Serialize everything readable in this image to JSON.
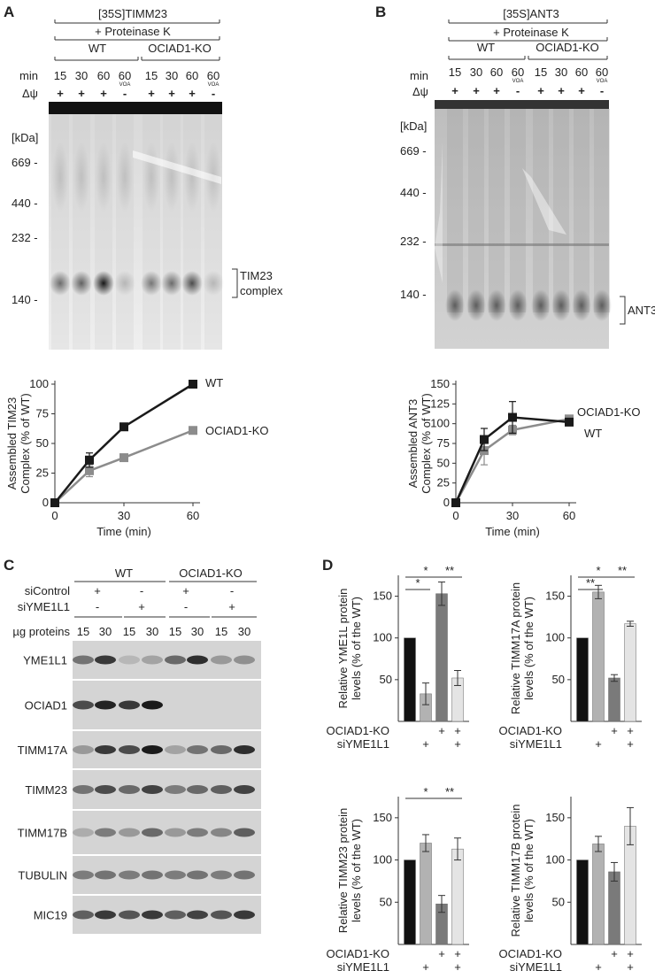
{
  "panels": {
    "A": {
      "letter": "A",
      "header_top": "[35S]TIMM23",
      "header_sub": "+ Proteinase K",
      "groups": [
        "WT",
        "OCIAD1-KO"
      ],
      "row_min_label": "min",
      "mins": [
        "15",
        "30",
        "60",
        "60",
        "15",
        "30",
        "60",
        "60"
      ],
      "voa": [
        "",
        "",
        "",
        "VOA",
        "",
        "",
        "",
        "VOA"
      ],
      "row_dpsi_label": "Δψ",
      "dpsi": [
        "+",
        "+",
        "+",
        "-",
        "+",
        "+",
        "+",
        "-"
      ],
      "kda_label": "[kDa]",
      "markers": [
        "669 -",
        "440 -",
        "232 -",
        "140 -"
      ],
      "band_label": "TIM23 complex",
      "band_label_lines": [
        "TIM23",
        "complex"
      ]
    },
    "B": {
      "letter": "B",
      "header_top": "[35S]ANT3",
      "header_sub": "+ Proteinase K",
      "groups": [
        "WT",
        "OCIAD1-KO"
      ],
      "row_min_label": "min",
      "mins": [
        "15",
        "30",
        "60",
        "60",
        "15",
        "30",
        "60",
        "60"
      ],
      "voa": [
        "",
        "",
        "",
        "VOA",
        "",
        "",
        "",
        "VOA"
      ],
      "row_dpsi_label": "Δψ",
      "dpsi": [
        "+",
        "+",
        "+",
        "-",
        "+",
        "+",
        "+",
        "-"
      ],
      "kda_label": "[kDa]",
      "markers": [
        "669 -",
        "440 -",
        "232 -",
        "140 -"
      ],
      "band_label": "ANT3"
    },
    "C": {
      "letter": "C",
      "groups": [
        "WT",
        "OCIAD1-KO"
      ],
      "rows": [
        {
          "label": "siControl",
          "values": [
            "+",
            "-",
            "+",
            "-"
          ]
        },
        {
          "label": "siYME1L1",
          "values": [
            "-",
            "+",
            "-",
            "+"
          ]
        }
      ],
      "protein_label": "µg proteins",
      "loads": [
        "15",
        "30",
        "15",
        "30",
        "15",
        "30",
        "15",
        "30"
      ],
      "blots": [
        "YME1L1",
        "OCIAD1",
        "TIMM17A",
        "TIMM23",
        "TIMM17B",
        "TUBULIN",
        "MIC19"
      ],
      "blot_suffix": "-"
    },
    "D": {
      "letter": "D",
      "cond_rows": [
        {
          "label": "OCIAD1-KO",
          "values": [
            "",
            "",
            "+",
            "+"
          ]
        },
        {
          "label": "siYME1L1",
          "values": [
            "",
            "+",
            "",
            "+"
          ]
        }
      ]
    }
  },
  "chart_data": [
    {
      "type": "line",
      "panel": "A",
      "x": [
        0,
        15,
        30,
        60
      ],
      "xlabel": "Time (min)",
      "ylabel": "Assembled TIM23 Complex (% of WT)",
      "ylabel_lines": [
        "Assembled TIM23",
        "Complex (% of WT)"
      ],
      "xlim": [
        0,
        60
      ],
      "ylim": [
        0,
        100
      ],
      "xticks": [
        0,
        30,
        60
      ],
      "yticks": [
        0,
        25,
        50,
        75,
        100
      ],
      "series": [
        {
          "name": "WT",
          "color": "#1a1a1a",
          "values": [
            0,
            36,
            64,
            100
          ],
          "err": [
            0,
            6,
            2,
            0
          ]
        },
        {
          "name": "OCIAD1-KO",
          "color": "#8c8c8c",
          "values": [
            0,
            27,
            38,
            61
          ],
          "err": [
            0,
            5,
            2,
            2
          ]
        }
      ]
    },
    {
      "type": "line",
      "panel": "B",
      "x": [
        0,
        15,
        30,
        60
      ],
      "xlabel": "Time (min)",
      "ylabel": "Assembled ANT3 Complex (% of WT)",
      "ylabel_lines": [
        "Assembled ANT3",
        "Complex (% of WT)"
      ],
      "xlim": [
        0,
        60
      ],
      "ylim": [
        0,
        150
      ],
      "xticks": [
        0,
        30,
        60
      ],
      "yticks": [
        0,
        25,
        50,
        75,
        100,
        125,
        150
      ],
      "series": [
        {
          "name": "WT",
          "color": "#1a1a1a",
          "values": [
            0,
            80,
            108,
            102
          ],
          "err": [
            0,
            14,
            20,
            4
          ]
        },
        {
          "name": "OCIAD1-KO",
          "color": "#8c8c8c",
          "values": [
            0,
            66,
            92,
            106
          ],
          "err": [
            0,
            18,
            6,
            4
          ]
        }
      ]
    },
    {
      "type": "bar",
      "panel": "D",
      "ylabel": "Relative YME1L protein levels (% of the WT)",
      "ylabel_lines": [
        "Relative YME1L protein",
        "levels (% of the WT)"
      ],
      "ylim": [
        0,
        175
      ],
      "yticks": [
        50,
        100,
        150
      ],
      "values": [
        100,
        33,
        153,
        52
      ],
      "err": [
        0,
        13,
        14,
        9
      ],
      "colors": [
        "#111111",
        "#b2b2b2",
        "#7a7a7a",
        "#e4e4e4"
      ],
      "significance": [
        {
          "from": 0,
          "to": 1,
          "label": "*"
        },
        {
          "from": 0,
          "to": 2,
          "label": "*"
        },
        {
          "from": 2,
          "to": 3,
          "label": "**"
        }
      ]
    },
    {
      "type": "bar",
      "panel": "D",
      "ylabel": "Relative TIMM17A protein levels (% of the WT)",
      "ylabel_lines": [
        "Relative TIMM17A protein",
        "levels (% of the WT)"
      ],
      "ylim": [
        0,
        175
      ],
      "yticks": [
        50,
        100,
        150
      ],
      "values": [
        100,
        155,
        52,
        117
      ],
      "err": [
        0,
        8,
        4,
        3
      ],
      "colors": [
        "#111111",
        "#b2b2b2",
        "#7a7a7a",
        "#e4e4e4"
      ],
      "significance": [
        {
          "from": 0,
          "to": 1,
          "label": "**"
        },
        {
          "from": 0,
          "to": 2,
          "label": "*"
        },
        {
          "from": 2,
          "to": 3,
          "label": "**"
        }
      ]
    },
    {
      "type": "bar",
      "panel": "D",
      "ylabel": "Relative TIMM23 protein levels (% of the WT)",
      "ylabel_lines": [
        "Relative TIMM23 protein",
        "levels (% of the WT)"
      ],
      "ylim": [
        0,
        175
      ],
      "yticks": [
        50,
        100,
        150
      ],
      "values": [
        100,
        120,
        48,
        113
      ],
      "err": [
        0,
        10,
        10,
        13
      ],
      "colors": [
        "#111111",
        "#b2b2b2",
        "#7a7a7a",
        "#e4e4e4"
      ],
      "significance": [
        {
          "from": 0,
          "to": 2,
          "label": "*"
        },
        {
          "from": 2,
          "to": 3,
          "label": "**"
        }
      ]
    },
    {
      "type": "bar",
      "panel": "D",
      "ylabel": "Relative TIMM17B protein levels (% of the WT)",
      "ylabel_lines": [
        "Relative TIMM17B protein",
        "levels (% of the WT)"
      ],
      "ylim": [
        0,
        175
      ],
      "yticks": [
        50,
        100,
        150
      ],
      "values": [
        100,
        119,
        86,
        140
      ],
      "err": [
        0,
        9,
        11,
        22
      ],
      "colors": [
        "#111111",
        "#b2b2b2",
        "#7a7a7a",
        "#e4e4e4"
      ],
      "significance": []
    }
  ]
}
